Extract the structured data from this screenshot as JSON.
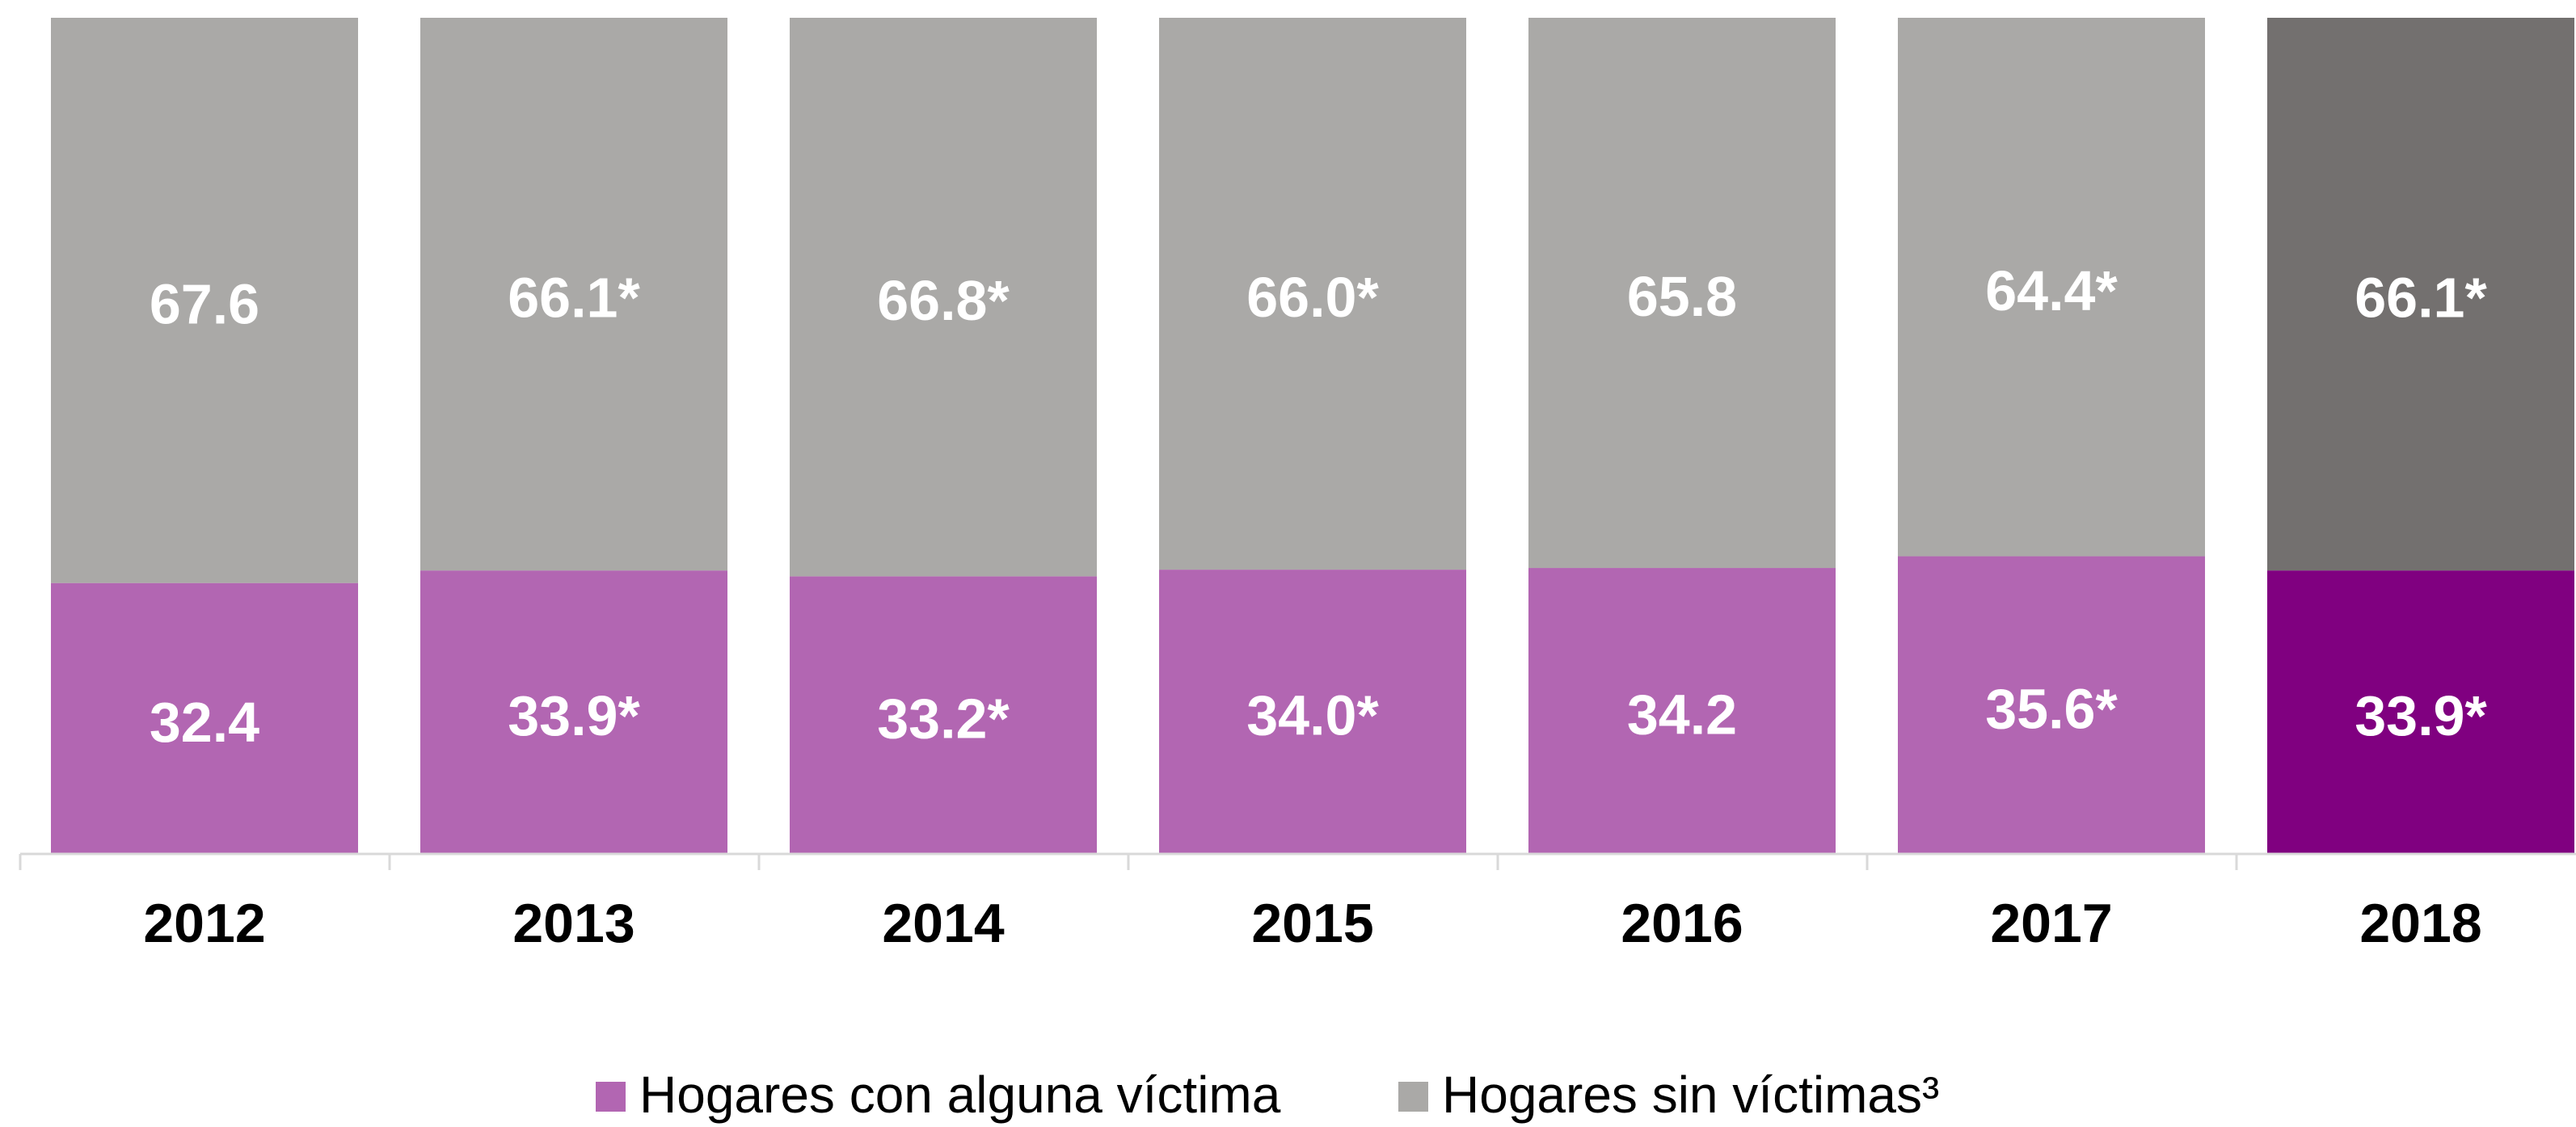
{
  "chart_data": {
    "type": "stacked_bar",
    "categories": [
      "2012",
      "2013",
      "2014",
      "2015",
      "2016",
      "2017",
      "2018"
    ],
    "series": [
      {
        "name": "Hogares con alguna víctima",
        "color": "#b266b2",
        "colors": [
          "#b266b2",
          "#b266b2",
          "#b266b2",
          "#b266b2",
          "#b266b2",
          "#b266b2",
          "#800080"
        ],
        "values": [
          32.4,
          33.9,
          33.2,
          34.0,
          34.2,
          35.6,
          33.9
        ],
        "value_labels": [
          "32.4",
          "33.9*",
          "33.2*",
          "34.0*",
          "34.2",
          "35.6*",
          "33.9*"
        ]
      },
      {
        "name": "Hogares sin víctimas³",
        "color": "#aaa9a7",
        "colors": [
          "#aaa9a7",
          "#aaa9a7",
          "#aaa9a7",
          "#aaa9a7",
          "#aaa9a7",
          "#aaa9a7",
          "#73706f"
        ],
        "values": [
          67.6,
          66.1,
          66.8,
          66.0,
          65.8,
          64.4,
          66.1
        ],
        "value_labels": [
          "67.6",
          "66.1*",
          "66.8*",
          "66.0*",
          "65.8",
          "64.4*",
          "66.1*"
        ]
      }
    ],
    "ylim": [
      0,
      100
    ],
    "legend": "bottom"
  }
}
